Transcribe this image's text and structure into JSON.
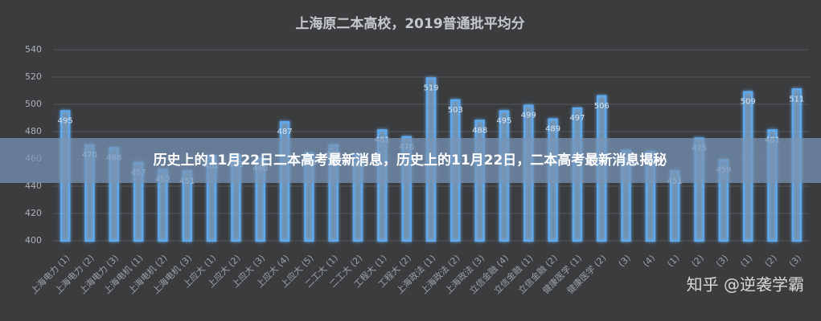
{
  "banner": {
    "title": "历史上的11月22日二本高考最新消息，历史上的11月22日，二本高考最新消息揭秘"
  },
  "watermark": "知乎 @逆袭学霸",
  "chart_data": {
    "type": "bar",
    "title": "上海原二本高校，2019普通批平均分",
    "categories": [
      "上海电力 (1)",
      "上海电力 (2)",
      "上海电力 (3)",
      "上海电机 (1)",
      "上海电机 (2)",
      "上海电机 (3)",
      "上应大 (1)",
      "上应大 (2)",
      "上应大 (3)",
      "上应大 (4)",
      "上应大 (5)",
      "二工大 (1)",
      "二工大 (2)",
      "工程大 (1)",
      "工程大 (2)",
      "上海政法 (1)",
      "上海政法 (2)",
      "上海政法 (3)",
      "立信金融 (4)",
      "立信金融 (1)",
      "立信金融 (2)",
      "健康医学 (1)",
      "健康医学 (2)",
      "(3)",
      "(4)",
      "(1)",
      "(2)",
      "(3)",
      "(1)",
      "(2)",
      "(3)"
    ],
    "values": [
      495,
      470,
      468,
      457,
      452,
      451,
      462,
      463,
      460,
      487,
      464,
      470,
      463,
      481,
      476,
      519,
      503,
      488,
      495,
      499,
      489,
      497,
      506,
      466,
      465,
      451,
      475,
      459,
      509,
      481,
      511
    ],
    "color": "#5ea8ec",
    "ylim": [
      400,
      540
    ],
    "yticks": [
      400,
      420,
      440,
      460,
      480,
      500,
      520,
      540
    ],
    "grid": true
  }
}
